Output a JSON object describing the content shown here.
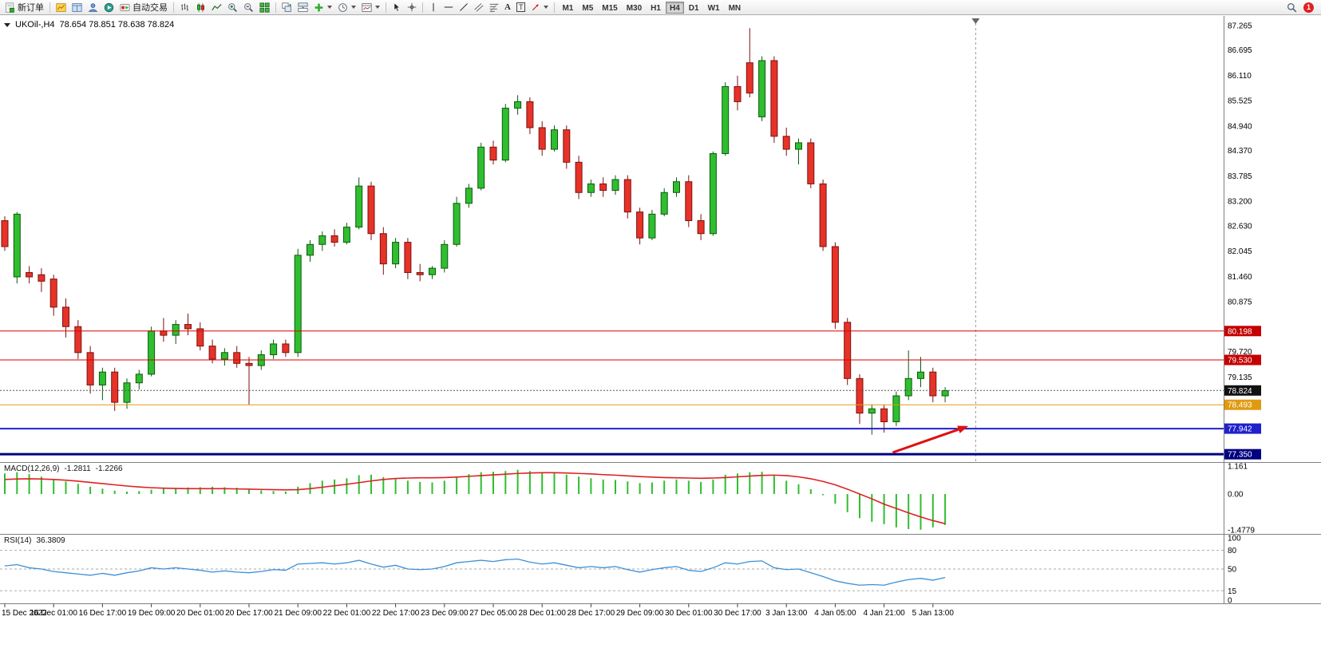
{
  "toolbar": {
    "new_order_label": "新订单",
    "autotrading_label": "自动交易",
    "text_tool_label": "A",
    "label_tool_label": "T",
    "timeframes": [
      "M1",
      "M5",
      "M15",
      "M30",
      "H1",
      "H4",
      "D1",
      "W1",
      "MN"
    ],
    "active_timeframe": "H4",
    "notification_count": "1",
    "icon_names": [
      "new-order-icon",
      "chart-profile-icon",
      "market-watch-icon",
      "navigator-icon",
      "terminal-icon",
      "autotrading-icon",
      "bar-chart-icon",
      "candlestick-icon",
      "line-chart-icon",
      "zoom-in-icon",
      "zoom-out-icon",
      "tile-windows-icon",
      "cascade-windows-icon",
      "arrange-windows-icon",
      "indicators-icon",
      "periods-icon",
      "templates-icon",
      "cursor-icon",
      "crosshair-icon",
      "vertical-line-icon",
      "horizontal-line-icon",
      "trendline-icon",
      "channel-icon",
      "fibonacci-icon",
      "text-icon",
      "text-label-icon",
      "arrow-tool-icon",
      "search-icon",
      "notification-badge"
    ]
  },
  "chart": {
    "symbol_period": "UKOil-,H4",
    "ohlc_text": "78.654 78.851 78.638 78.824",
    "open": "78.654",
    "high": "78.851",
    "low": "78.638",
    "close": "78.824"
  },
  "macd": {
    "name": "MACD(12,26,9)",
    "hist_value": "-1.2811",
    "signal_value": "-1.2266",
    "axis": [
      "1.161",
      "0.00",
      "-1.4779"
    ]
  },
  "rsi": {
    "name": "RSI(14)",
    "value": "36.3809",
    "axis": [
      "100",
      "80",
      "50",
      "15",
      "0"
    ]
  },
  "price_axis": {
    "ticks": [
      "87.265",
      "86.695",
      "86.110",
      "85.525",
      "84.940",
      "84.370",
      "83.785",
      "83.200",
      "82.630",
      "82.045",
      "81.460",
      "80.875",
      "79.720",
      "79.135"
    ]
  },
  "price_tags": [
    {
      "label": "80.198",
      "bg": "#c40000",
      "fg": "#ffffff"
    },
    {
      "label": "79.530",
      "bg": "#c40000",
      "fg": "#ffffff"
    },
    {
      "label": "78.824",
      "bg": "#111111",
      "fg": "#ffffff"
    },
    {
      "label": "78.493",
      "bg": "#e09a10",
      "fg": "#ffffff"
    },
    {
      "label": "77.942",
      "bg": "#2020cc",
      "fg": "#ffffff"
    },
    {
      "label": "77.350",
      "bg": "#000080",
      "fg": "#ffffff"
    }
  ],
  "time_axis": {
    "labels": [
      "15 Dec 2022",
      "16 Dec 01:00",
      "16 Dec 17:00",
      "19 Dec 09:00",
      "20 Dec 01:00",
      "20 Dec 17:00",
      "21 Dec 09:00",
      "22 Dec 01:00",
      "22 Dec 17:00",
      "23 Dec 09:00",
      "27 Dec 05:00",
      "28 Dec 01:00",
      "28 Dec 17:00",
      "29 Dec 09:00",
      "30 Dec 01:00",
      "30 Dec 17:00",
      "3 Jan 13:00",
      "4 Jan 05:00",
      "4 Jan 21:00",
      "5 Jan 13:00"
    ]
  },
  "chart_data": {
    "type": "candlestick",
    "title": "UKOil-,H4",
    "symbol": "UKOil-",
    "timeframe": "H4",
    "price_range_visible": [
      77.2,
      87.5
    ],
    "up_color": "#2fbe2f",
    "down_color": "#e63228",
    "candles": [
      [
        82.75,
        82.85,
        82.05,
        82.15
      ],
      [
        81.45,
        82.95,
        81.3,
        82.9
      ],
      [
        81.55,
        81.7,
        81.3,
        81.45
      ],
      [
        81.5,
        81.65,
        81.1,
        81.35
      ],
      [
        81.4,
        81.5,
        80.55,
        80.75
      ],
      [
        80.75,
        80.95,
        80.05,
        80.3
      ],
      [
        80.3,
        80.45,
        79.55,
        79.7
      ],
      [
        79.7,
        79.85,
        78.75,
        78.95
      ],
      [
        78.95,
        79.35,
        78.6,
        79.25
      ],
      [
        79.25,
        79.35,
        78.35,
        78.55
      ],
      [
        78.55,
        79.1,
        78.4,
        79.0
      ],
      [
        79.0,
        79.3,
        78.85,
        79.2
      ],
      [
        79.2,
        80.3,
        79.15,
        80.2
      ],
      [
        80.2,
        80.5,
        79.95,
        80.1
      ],
      [
        80.1,
        80.45,
        79.9,
        80.35
      ],
      [
        80.35,
        80.6,
        80.1,
        80.25
      ],
      [
        80.25,
        80.4,
        79.75,
        79.85
      ],
      [
        79.85,
        80.0,
        79.45,
        79.55
      ],
      [
        79.55,
        79.8,
        79.4,
        79.7
      ],
      [
        79.7,
        79.85,
        79.35,
        79.45
      ],
      [
        79.45,
        79.6,
        78.5,
        79.4
      ],
      [
        79.4,
        79.75,
        79.3,
        79.65
      ],
      [
        79.65,
        80.0,
        79.55,
        79.9
      ],
      [
        79.9,
        80.0,
        79.6,
        79.7
      ],
      [
        79.7,
        82.1,
        79.6,
        81.95
      ],
      [
        81.95,
        82.3,
        81.8,
        82.2
      ],
      [
        82.2,
        82.5,
        82.05,
        82.4
      ],
      [
        82.4,
        82.55,
        82.15,
        82.25
      ],
      [
        82.25,
        82.7,
        82.2,
        82.6
      ],
      [
        82.6,
        83.75,
        82.55,
        83.55
      ],
      [
        83.55,
        83.65,
        82.3,
        82.45
      ],
      [
        82.45,
        82.6,
        81.5,
        81.75
      ],
      [
        81.75,
        82.35,
        81.65,
        82.25
      ],
      [
        82.25,
        82.35,
        81.4,
        81.55
      ],
      [
        81.55,
        81.75,
        81.35,
        81.5
      ],
      [
        81.5,
        81.7,
        81.4,
        81.65
      ],
      [
        81.65,
        82.3,
        81.55,
        82.2
      ],
      [
        82.2,
        83.3,
        82.15,
        83.15
      ],
      [
        83.15,
        83.6,
        83.05,
        83.5
      ],
      [
        83.5,
        84.55,
        83.45,
        84.45
      ],
      [
        84.45,
        84.6,
        84.05,
        84.15
      ],
      [
        84.15,
        85.45,
        84.1,
        85.35
      ],
      [
        85.35,
        85.65,
        85.2,
        85.5
      ],
      [
        85.5,
        85.6,
        84.75,
        84.9
      ],
      [
        84.9,
        85.05,
        84.25,
        84.4
      ],
      [
        84.4,
        84.95,
        84.35,
        84.85
      ],
      [
        84.85,
        84.95,
        83.95,
        84.1
      ],
      [
        84.1,
        84.25,
        83.25,
        83.4
      ],
      [
        83.4,
        83.7,
        83.3,
        83.6
      ],
      [
        83.6,
        83.75,
        83.3,
        83.45
      ],
      [
        83.45,
        83.8,
        83.35,
        83.7
      ],
      [
        83.7,
        83.8,
        82.8,
        82.95
      ],
      [
        82.95,
        83.05,
        82.2,
        82.35
      ],
      [
        82.35,
        83.0,
        82.3,
        82.9
      ],
      [
        82.9,
        83.5,
        82.85,
        83.4
      ],
      [
        83.4,
        83.75,
        83.3,
        83.65
      ],
      [
        83.65,
        83.8,
        82.6,
        82.75
      ],
      [
        82.75,
        82.9,
        82.3,
        82.45
      ],
      [
        82.45,
        84.35,
        82.4,
        84.3
      ],
      [
        84.3,
        85.95,
        84.25,
        85.85
      ],
      [
        85.85,
        86.1,
        85.3,
        85.5
      ],
      [
        86.4,
        87.2,
        85.6,
        85.7
      ],
      [
        85.15,
        86.55,
        85.05,
        86.45
      ],
      [
        86.45,
        86.55,
        84.55,
        84.7
      ],
      [
        84.7,
        84.9,
        84.25,
        84.4
      ],
      [
        84.4,
        84.65,
        84.05,
        84.55
      ],
      [
        84.55,
        84.65,
        83.5,
        83.6
      ],
      [
        83.6,
        83.7,
        82.05,
        82.15
      ],
      [
        82.15,
        82.25,
        80.25,
        80.4
      ],
      [
        80.4,
        80.5,
        78.95,
        79.1
      ],
      [
        79.1,
        79.2,
        78.05,
        78.3
      ],
      [
        78.3,
        78.5,
        77.8,
        78.4
      ],
      [
        78.4,
        78.5,
        77.85,
        78.1
      ],
      [
        78.1,
        78.8,
        78.0,
        78.7
      ],
      [
        78.7,
        79.75,
        78.6,
        79.1
      ],
      [
        79.1,
        79.6,
        78.9,
        79.25
      ],
      [
        79.25,
        79.35,
        78.55,
        78.7
      ],
      [
        78.7,
        78.9,
        78.55,
        78.82
      ]
    ],
    "hlines": [
      {
        "price": 80.198,
        "color": "#dd0000",
        "width": 1,
        "dash": ""
      },
      {
        "price": 79.53,
        "color": "#dd0000",
        "width": 1,
        "dash": ""
      },
      {
        "price": 78.824,
        "color": "#555555",
        "width": 1,
        "dash": "2,2"
      },
      {
        "price": 78.493,
        "color": "#e09a10",
        "width": 1,
        "dash": ""
      },
      {
        "price": 77.942,
        "color": "#2020cc",
        "width": 2,
        "dash": ""
      },
      {
        "price": 77.35,
        "color": "#000080",
        "width": 3,
        "dash": ""
      }
    ],
    "indicators": {
      "macd": {
        "params": [
          12,
          26,
          9
        ],
        "range": [
          -1.4779,
          1.161
        ],
        "histogram": [
          0.85,
          0.9,
          0.82,
          0.72,
          0.62,
          0.52,
          0.42,
          0.3,
          0.22,
          0.14,
          0.1,
          0.12,
          0.18,
          0.22,
          0.25,
          0.27,
          0.28,
          0.3,
          0.28,
          0.26,
          0.2,
          0.15,
          0.12,
          0.1,
          0.3,
          0.45,
          0.55,
          0.6,
          0.65,
          0.78,
          0.8,
          0.7,
          0.62,
          0.55,
          0.5,
          0.48,
          0.55,
          0.7,
          0.82,
          0.9,
          0.92,
          0.95,
          1.0,
          0.95,
          0.9,
          0.88,
          0.8,
          0.72,
          0.65,
          0.6,
          0.58,
          0.52,
          0.45,
          0.48,
          0.55,
          0.6,
          0.55,
          0.5,
          0.6,
          0.8,
          0.85,
          0.9,
          0.92,
          0.75,
          0.55,
          0.4,
          0.2,
          -0.05,
          -0.4,
          -0.75,
          -1.0,
          -1.15,
          -1.25,
          -1.38,
          -1.45,
          -1.4779,
          -1.38,
          -1.2811
        ],
        "signal": [
          0.6,
          0.62,
          0.63,
          0.62,
          0.6,
          0.57,
          0.53,
          0.48,
          0.43,
          0.38,
          0.33,
          0.29,
          0.26,
          0.24,
          0.23,
          0.22,
          0.22,
          0.22,
          0.22,
          0.21,
          0.2,
          0.19,
          0.18,
          0.17,
          0.18,
          0.22,
          0.28,
          0.34,
          0.4,
          0.47,
          0.54,
          0.6,
          0.64,
          0.66,
          0.67,
          0.67,
          0.68,
          0.7,
          0.73,
          0.76,
          0.79,
          0.82,
          0.85,
          0.87,
          0.88,
          0.88,
          0.87,
          0.85,
          0.83,
          0.8,
          0.78,
          0.75,
          0.72,
          0.7,
          0.68,
          0.67,
          0.66,
          0.65,
          0.66,
          0.68,
          0.71,
          0.74,
          0.77,
          0.78,
          0.76,
          0.71,
          0.63,
          0.52,
          0.38,
          0.2,
          0.0,
          -0.2,
          -0.42,
          -0.6,
          -0.78,
          -0.95,
          -1.1,
          -1.2266
        ]
      },
      "rsi": {
        "period": 14,
        "range": [
          0,
          100
        ],
        "levels": [
          80,
          50,
          15
        ],
        "values": [
          55,
          57,
          52,
          50,
          46,
          44,
          42,
          40,
          43,
          40,
          44,
          47,
          52,
          50,
          52,
          50,
          48,
          45,
          47,
          45,
          44,
          46,
          49,
          48,
          58,
          59,
          60,
          58,
          60,
          64,
          58,
          53,
          56,
          50,
          49,
          50,
          54,
          60,
          62,
          64,
          62,
          65,
          66,
          61,
          58,
          60,
          56,
          52,
          54,
          52,
          54,
          49,
          45,
          49,
          52,
          54,
          48,
          46,
          52,
          60,
          58,
          62,
          63,
          52,
          49,
          50,
          44,
          38,
          31,
          27,
          24,
          25,
          24,
          29,
          33,
          35,
          32,
          36.38
        ]
      }
    },
    "annotations": [
      {
        "type": "arrow",
        "color": "#dd1111",
        "from": {
          "index": 72.7,
          "price": 77.39
        },
        "to": {
          "index": 78.9,
          "price": 78.0
        }
      }
    ],
    "shift_line_index": 79.5
  }
}
